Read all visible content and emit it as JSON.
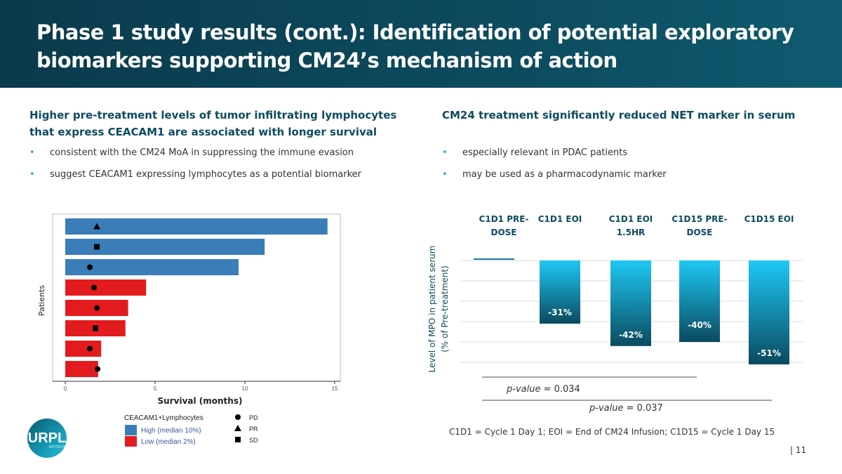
{
  "header": {
    "title": "Phase 1 study results (cont.): Identification of potential exploratory biomarkers supporting CM24’s mechanism of action"
  },
  "left": {
    "heading": "Higher pre-treatment levels of tumor infiltrating lymphocytes that express CEACAM1 are associated with longer survival",
    "bullets": [
      "consistent with the CM24 MoA in suppressing the immune evasion",
      "suggest CEACAM1 expressing lymphocytes as a potential biomarker"
    ]
  },
  "right": {
    "heading": "CM24 treatment significantly reduced NET marker in serum",
    "bullets": [
      "especially relevant in PDAC patients",
      "may be used as a pharmacodynamic marker"
    ],
    "footnote": "C1D1 = Cycle 1 Day 1; EOI = End of CM24 Infusion; C1D15 = Cycle 1 Day 15",
    "pvalues": [
      {
        "label": "p-value",
        "value": " = 0.034"
      },
      {
        "label": "p-value",
        "value": " = 0.037"
      }
    ]
  },
  "page_number": "| 11",
  "logo": {
    "text": "PURPLE",
    "sub": "BIOTECH"
  },
  "chart_data": [
    {
      "type": "bar",
      "orientation": "horizontal",
      "xlabel": "Survival (months)",
      "ylabel": "Patients",
      "xlim": [
        0,
        15
      ],
      "xticks": [
        0,
        5,
        10,
        15
      ],
      "legend_title": "CEACAM1+Lymphocytes",
      "groups": [
        {
          "name": "High (median 10%)",
          "color": "#3a7db8"
        },
        {
          "name": "Low (median 2%)",
          "color": "#e31b1f"
        }
      ],
      "markers": [
        {
          "name": "PD",
          "shape": "circle"
        },
        {
          "name": "PR",
          "shape": "triangle"
        },
        {
          "name": "SD",
          "shape": "square"
        }
      ],
      "patients": [
        {
          "survival": 14.6,
          "group": 0,
          "response": "PR",
          "marker_x": 1.76
        },
        {
          "survival": 11.1,
          "group": 0,
          "response": "SD",
          "marker_x": 1.76
        },
        {
          "survival": 9.65,
          "group": 0,
          "response": "PD",
          "marker_x": 1.37
        },
        {
          "survival": 4.5,
          "group": 1,
          "response": "PD",
          "marker_x": 1.6
        },
        {
          "survival": 3.5,
          "group": 1,
          "response": "PD",
          "marker_x": 1.76
        },
        {
          "survival": 3.35,
          "group": 1,
          "response": "SD",
          "marker_x": 1.68
        },
        {
          "survival": 2.0,
          "group": 1,
          "response": "PD",
          "marker_x": 1.37
        },
        {
          "survival": 1.83,
          "group": 1,
          "response": "PD",
          "marker_x": 1.8
        }
      ]
    },
    {
      "type": "bar",
      "ylabel": "Level of MPO in patient serum (% of Pre-treatment)",
      "ylim": [
        -50,
        0
      ],
      "grid": true,
      "categories": [
        "C1D1 PRE-DOSE",
        "C1D1 EOI",
        "C1D1 EOI 1.5HR",
        "C1D15 PRE-DOSE",
        "C1D15 EOI"
      ],
      "values": [
        0,
        -31,
        -42,
        -40,
        -51
      ],
      "data_labels": [
        "",
        "-31%",
        "-42%",
        "-40%",
        "-51%"
      ],
      "colors": {
        "top": "#1ec8f5",
        "bottom": "#0a4a5f"
      }
    }
  ]
}
